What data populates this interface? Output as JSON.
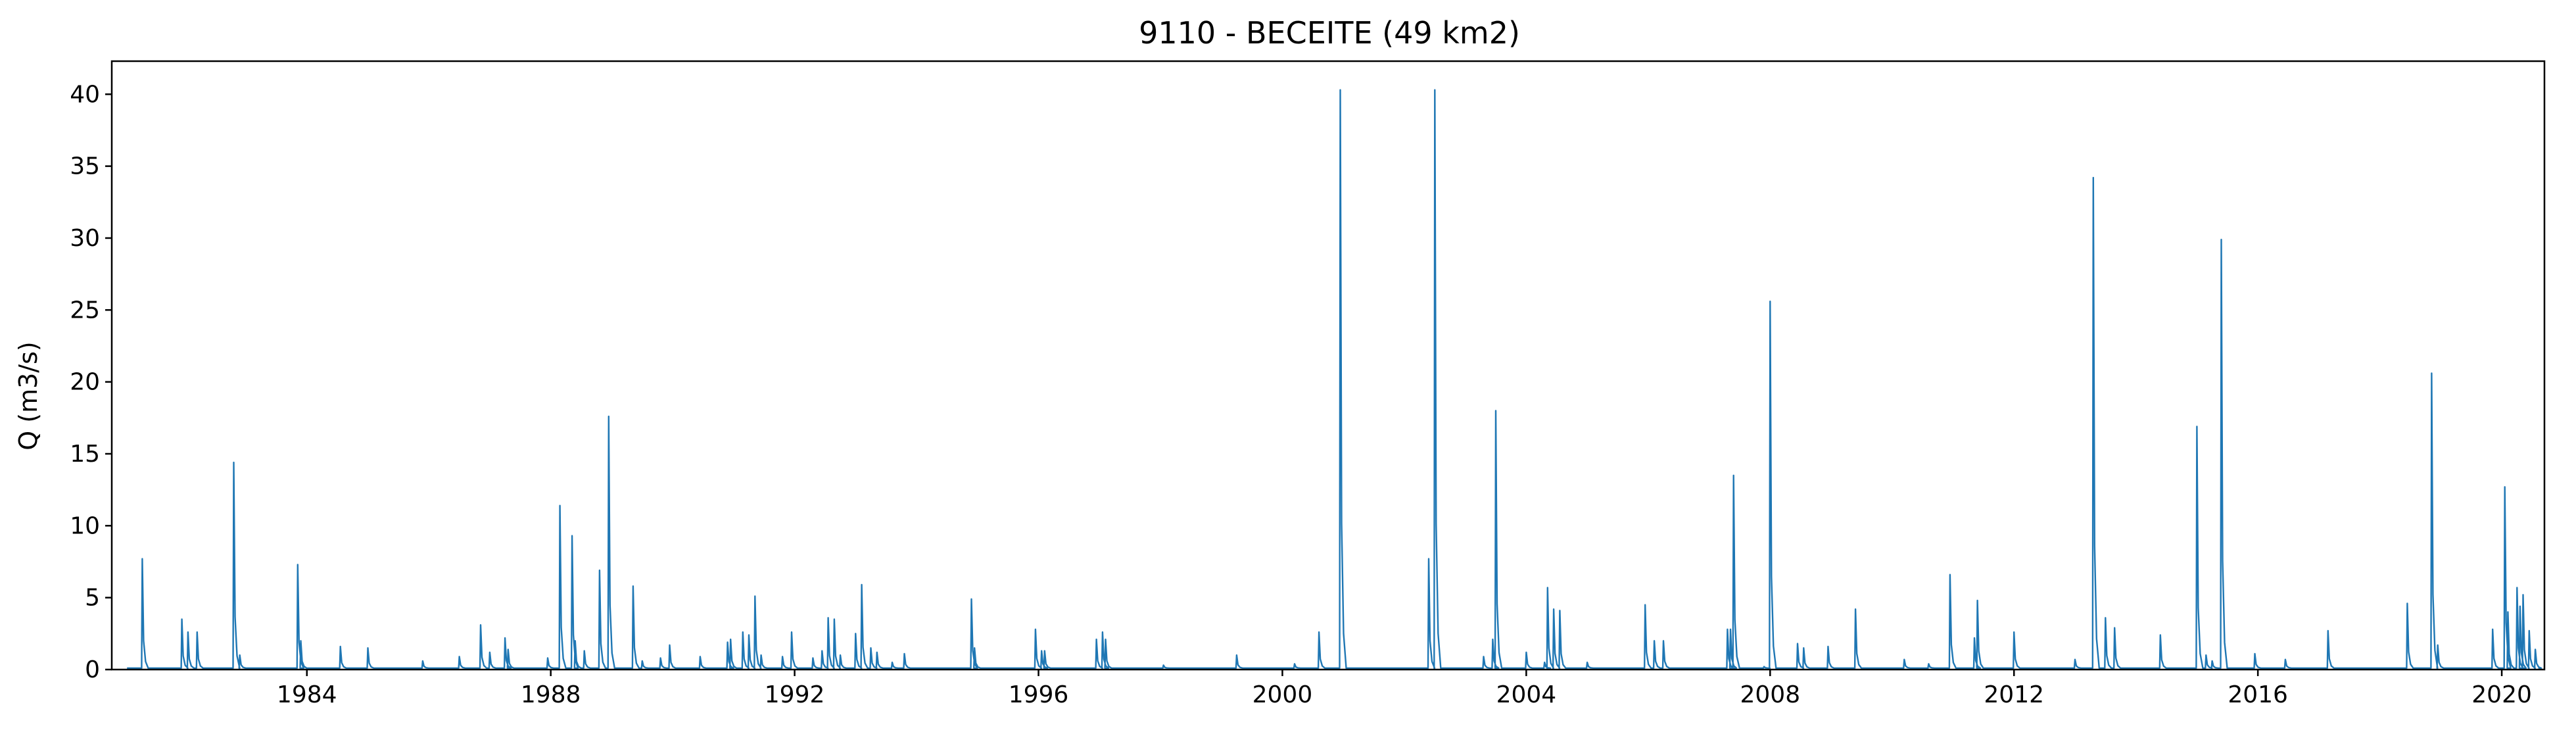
{
  "chart_data": {
    "type": "line",
    "title": "9110 - BECEITE (49 km2)",
    "xlabel": "",
    "ylabel": "Q (m3/s)",
    "xlim": [
      1980.8,
      2020.7
    ],
    "ylim": [
      0,
      42.3
    ],
    "xticks": [
      1984,
      1988,
      1992,
      1996,
      2000,
      2004,
      2008,
      2012,
      2016,
      2020
    ],
    "yticks": [
      0,
      5,
      10,
      15,
      20,
      25,
      30,
      35,
      40
    ],
    "grid": false,
    "legend": "none",
    "series": [
      {
        "color": "#1f77b4",
        "baseflow": 0.1,
        "peaks": [
          [
            1981.3,
            7.7
          ],
          [
            1981.95,
            3.5
          ],
          [
            1982.05,
            2.6
          ],
          [
            1982.2,
            2.6
          ],
          [
            1982.8,
            14.4
          ],
          [
            1982.9,
            1.0
          ],
          [
            1983.85,
            7.3
          ],
          [
            1983.9,
            2.0
          ],
          [
            1984.55,
            1.6
          ],
          [
            1985.0,
            1.5
          ],
          [
            1985.9,
            0.6
          ],
          [
            1986.5,
            0.9
          ],
          [
            1986.85,
            3.1
          ],
          [
            1987.0,
            1.2
          ],
          [
            1987.25,
            2.2
          ],
          [
            1987.3,
            1.4
          ],
          [
            1987.95,
            0.8
          ],
          [
            1988.15,
            11.4
          ],
          [
            1988.35,
            9.3
          ],
          [
            1988.4,
            2.0
          ],
          [
            1988.55,
            1.3
          ],
          [
            1988.8,
            6.9
          ],
          [
            1988.95,
            17.6
          ],
          [
            1989.35,
            5.8
          ],
          [
            1989.5,
            0.6
          ],
          [
            1989.8,
            0.8
          ],
          [
            1989.95,
            1.7
          ],
          [
            1990.45,
            0.9
          ],
          [
            1990.9,
            1.9
          ],
          [
            1990.95,
            2.1
          ],
          [
            1991.15,
            2.6
          ],
          [
            1991.25,
            2.4
          ],
          [
            1991.35,
            5.1
          ],
          [
            1991.45,
            1.0
          ],
          [
            1991.8,
            0.9
          ],
          [
            1991.95,
            2.6
          ],
          [
            1992.3,
            0.8
          ],
          [
            1992.45,
            1.3
          ],
          [
            1992.55,
            3.6
          ],
          [
            1992.65,
            3.5
          ],
          [
            1992.75,
            1.0
          ],
          [
            1993.0,
            2.5
          ],
          [
            1993.1,
            5.9
          ],
          [
            1993.25,
            1.5
          ],
          [
            1993.35,
            1.2
          ],
          [
            1993.6,
            0.5
          ],
          [
            1993.8,
            1.1
          ],
          [
            1994.9,
            4.9
          ],
          [
            1994.95,
            1.5
          ],
          [
            1995.95,
            2.8
          ],
          [
            1996.05,
            1.3
          ],
          [
            1996.1,
            1.3
          ],
          [
            1996.95,
            2.1
          ],
          [
            1997.05,
            2.6
          ],
          [
            1997.1,
            2.1
          ],
          [
            1998.05,
            0.3
          ],
          [
            1999.25,
            1.0
          ],
          [
            2000.2,
            0.4
          ],
          [
            2000.6,
            2.6
          ],
          [
            2000.95,
            40.3
          ],
          [
            2002.4,
            7.7
          ],
          [
            2002.5,
            40.3
          ],
          [
            2003.3,
            0.9
          ],
          [
            2003.45,
            2.1
          ],
          [
            2003.5,
            18.0
          ],
          [
            2004.0,
            1.2
          ],
          [
            2004.3,
            0.5
          ],
          [
            2004.35,
            5.7
          ],
          [
            2004.45,
            4.2
          ],
          [
            2004.55,
            4.1
          ],
          [
            2005.0,
            0.5
          ],
          [
            2005.95,
            4.5
          ],
          [
            2006.1,
            2.0
          ],
          [
            2006.25,
            2.0
          ],
          [
            2007.3,
            2.8
          ],
          [
            2007.35,
            2.8
          ],
          [
            2007.4,
            13.5
          ],
          [
            2007.9,
            0.2
          ],
          [
            2008.0,
            25.6
          ],
          [
            2008.45,
            1.8
          ],
          [
            2008.55,
            1.5
          ],
          [
            2008.95,
            1.6
          ],
          [
            2009.4,
            4.2
          ],
          [
            2010.2,
            0.7
          ],
          [
            2010.6,
            0.4
          ],
          [
            2010.95,
            6.6
          ],
          [
            2011.35,
            2.2
          ],
          [
            2011.4,
            4.8
          ],
          [
            2012.0,
            2.6
          ],
          [
            2013.0,
            0.7
          ],
          [
            2013.3,
            34.2
          ],
          [
            2013.5,
            3.6
          ],
          [
            2013.65,
            2.9
          ],
          [
            2014.4,
            2.4
          ],
          [
            2015.0,
            16.9
          ],
          [
            2015.15,
            1.0
          ],
          [
            2015.25,
            0.6
          ],
          [
            2015.4,
            29.9
          ],
          [
            2015.95,
            1.1
          ],
          [
            2016.45,
            0.7
          ],
          [
            2017.15,
            2.7
          ],
          [
            2018.45,
            4.6
          ],
          [
            2018.85,
            20.6
          ],
          [
            2018.95,
            1.7
          ],
          [
            2019.85,
            2.8
          ],
          [
            2020.05,
            12.7
          ],
          [
            2020.1,
            4.0
          ],
          [
            2020.25,
            5.7
          ],
          [
            2020.3,
            4.4
          ],
          [
            2020.35,
            5.2
          ],
          [
            2020.45,
            2.7
          ],
          [
            2020.55,
            1.4
          ]
        ]
      }
    ]
  }
}
